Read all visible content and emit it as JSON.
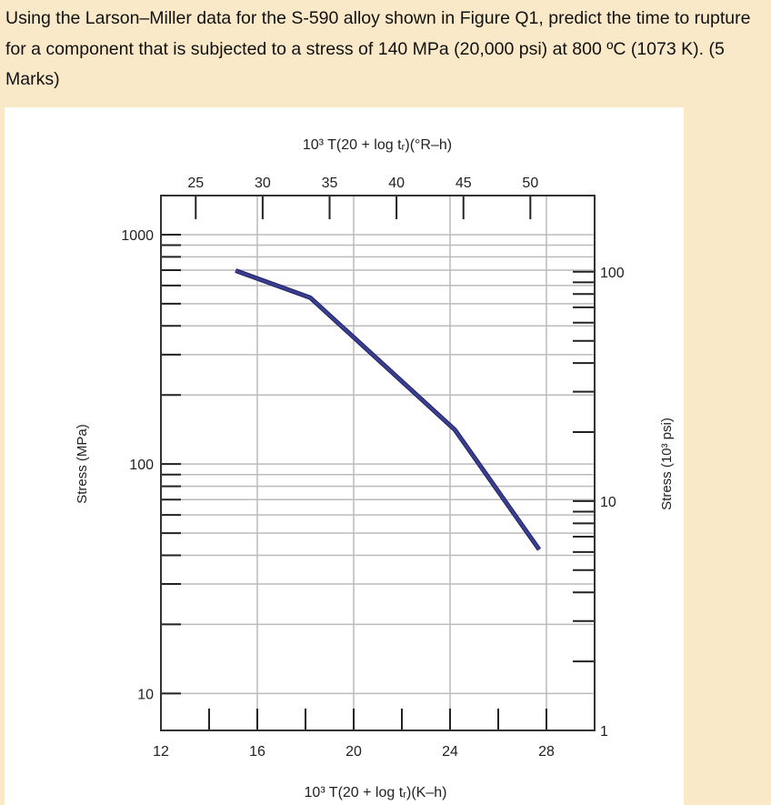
{
  "question": {
    "text": "Using the Larson–Miller data for the S-590 alloy shown in Figure Q1, predict the time to rupture for a component that is subjected to a stress of 140 MPa (20,000 psi) at 800 ºC (1073 K). (5 Marks)"
  },
  "chart_data": {
    "type": "line",
    "title": "",
    "xlabel": "10³ T(20 + log tᵣ)(K–h)",
    "x_top_label": "10³ T(20 + log tᵣ)(°R–h)",
    "ylabel": "Stress (MPa)",
    "y_right_label": "Stress (10³ psi)",
    "xlim": [
      12,
      30
    ],
    "x_ticks": [
      12,
      16,
      20,
      24,
      28
    ],
    "x_top_lim": [
      22.4,
      54.8
    ],
    "x_top_ticks": [
      25,
      30,
      35,
      40,
      45,
      50
    ],
    "ylim": [
      6.9,
      1480
    ],
    "y_scale": "log",
    "y_ticks": [
      10,
      100,
      1000
    ],
    "y_right_lim": [
      1,
      215
    ],
    "y_right_scale": "log",
    "y_right_ticks": [
      1,
      10,
      100
    ],
    "grid": true,
    "line_color": "#3b3f92",
    "series": [
      {
        "x": [
          15.1,
          18.2,
          24.2,
          27.7
        ],
        "y": [
          697,
          531,
          141,
          42.4
        ]
      }
    ]
  }
}
